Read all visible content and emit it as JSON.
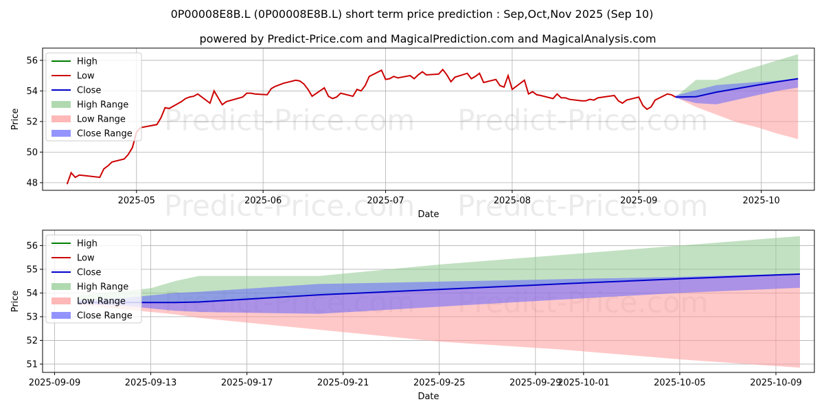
{
  "title": "0P00008E8B.L (0P00008E8B.L) short term price prediction : Sep,Oct,Nov 2025 (Sep 10)",
  "subtitle": "powered by Predict-Price.com and MagicalPrediction.com and MagicalAnalysis.com",
  "watermark": "Predict-Price.com",
  "colors": {
    "high": "#008000",
    "low": "#cc0000",
    "close": "#0000cc",
    "high_range": "#8fc98f",
    "low_range": "#ff9a9a",
    "close_range": "#6666ff"
  },
  "chart_data": [
    {
      "type": "line",
      "panel": "top",
      "xlabel": "Date",
      "ylabel": "Price",
      "xlim": [
        "2025-04-08",
        "2025-10-14"
      ],
      "ylim": [
        47.5,
        56.8
      ],
      "yticks": [
        48,
        50,
        52,
        54,
        56
      ],
      "ytick_labels": [
        "48",
        "50",
        "52",
        "54",
        "56"
      ],
      "xticks": [
        "2025-05-01",
        "2025-06-01",
        "2025-07-01",
        "2025-08-01",
        "2025-09-01",
        "2025-10-01"
      ],
      "xtick_labels": [
        "2025-05",
        "2025-06",
        "2025-07",
        "2025-08",
        "2025-09",
        "2025-10"
      ],
      "grid": true,
      "legend": {
        "placement": "top-left",
        "entries": [
          {
            "label": "High",
            "kind": "line",
            "color_key": "high"
          },
          {
            "label": "Low",
            "kind": "line",
            "color_key": "low"
          },
          {
            "label": "Close",
            "kind": "line",
            "color_key": "close"
          },
          {
            "label": "High Range",
            "kind": "patch",
            "color_key": "high_range"
          },
          {
            "label": "Low Range",
            "kind": "patch",
            "color_key": "low_range"
          },
          {
            "label": "Close Range",
            "kind": "patch",
            "color_key": "close_range"
          }
        ]
      },
      "history": {
        "x": [
          "2025-04-14",
          "2025-04-15",
          "2025-04-16",
          "2025-04-17",
          "2025-04-22",
          "2025-04-23",
          "2025-04-24",
          "2025-04-25",
          "2025-04-28",
          "2025-04-29",
          "2025-04-30",
          "2025-05-01",
          "2025-05-02",
          "2025-05-06",
          "2025-05-07",
          "2025-05-08",
          "2025-05-09",
          "2025-05-12",
          "2025-05-13",
          "2025-05-14",
          "2025-05-15",
          "2025-05-16",
          "2025-05-19",
          "2025-05-20",
          "2025-05-21",
          "2025-05-22",
          "2025-05-23",
          "2025-05-27",
          "2025-05-28",
          "2025-05-29",
          "2025-05-30",
          "2025-06-02",
          "2025-06-03",
          "2025-06-04",
          "2025-06-05",
          "2025-06-06",
          "2025-06-09",
          "2025-06-10",
          "2025-06-11",
          "2025-06-12",
          "2025-06-13",
          "2025-06-16",
          "2025-06-17",
          "2025-06-18",
          "2025-06-19",
          "2025-06-20",
          "2025-06-23",
          "2025-06-24",
          "2025-06-25",
          "2025-06-26",
          "2025-06-27",
          "2025-06-30",
          "2025-07-01",
          "2025-07-02",
          "2025-07-03",
          "2025-07-04",
          "2025-07-07",
          "2025-07-08",
          "2025-07-09",
          "2025-07-10",
          "2025-07-11",
          "2025-07-14",
          "2025-07-15",
          "2025-07-16",
          "2025-07-17",
          "2025-07-18",
          "2025-07-21",
          "2025-07-22",
          "2025-07-23",
          "2025-07-24",
          "2025-07-25",
          "2025-07-28",
          "2025-07-29",
          "2025-07-30",
          "2025-07-31",
          "2025-08-01",
          "2025-08-04",
          "2025-08-05",
          "2025-08-06",
          "2025-08-07",
          "2025-08-08",
          "2025-08-11",
          "2025-08-12",
          "2025-08-13",
          "2025-08-14",
          "2025-08-15",
          "2025-08-18",
          "2025-08-19",
          "2025-08-20",
          "2025-08-21",
          "2025-08-22",
          "2025-08-26",
          "2025-08-27",
          "2025-08-28",
          "2025-08-29",
          "2025-09-01",
          "2025-09-02",
          "2025-09-03",
          "2025-09-04",
          "2025-09-05",
          "2025-09-08",
          "2025-09-09",
          "2025-09-10"
        ],
        "low": [
          47.9,
          48.65,
          48.35,
          48.5,
          48.35,
          48.9,
          49.1,
          49.35,
          49.55,
          49.85,
          50.3,
          51.3,
          51.6,
          51.8,
          52.25,
          52.9,
          52.85,
          53.3,
          53.5,
          53.6,
          53.65,
          53.8,
          53.2,
          54.0,
          53.55,
          53.1,
          53.3,
          53.6,
          53.85,
          53.85,
          53.8,
          53.75,
          54.15,
          54.3,
          54.4,
          54.5,
          54.7,
          54.65,
          54.45,
          54.1,
          53.65,
          54.2,
          53.65,
          53.5,
          53.6,
          53.85,
          53.65,
          54.1,
          54.0,
          54.35,
          54.95,
          55.35,
          54.75,
          54.8,
          54.95,
          54.85,
          55.0,
          54.8,
          55.05,
          55.25,
          55.05,
          55.1,
          55.4,
          55.05,
          54.6,
          54.9,
          55.15,
          54.8,
          54.95,
          55.15,
          54.55,
          54.75,
          54.35,
          54.25,
          55.0,
          54.1,
          54.7,
          53.8,
          53.95,
          53.75,
          53.7,
          53.5,
          53.8,
          53.55,
          53.55,
          53.45,
          53.35,
          53.35,
          53.45,
          53.4,
          53.55,
          53.7,
          53.35,
          53.2,
          53.4,
          53.6,
          53.05,
          52.8,
          52.95,
          53.4,
          53.8,
          53.75,
          53.6
        ]
      },
      "forecast": {
        "x": [
          "2025-09-10",
          "2025-09-15",
          "2025-09-20",
          "2025-09-25",
          "2025-09-30",
          "2025-10-05",
          "2025-10-10"
        ],
        "close": [
          53.6,
          53.62,
          53.92,
          54.15,
          54.38,
          54.6,
          54.8
        ],
        "high_upper": [
          53.6,
          54.72,
          54.72,
          55.2,
          55.6,
          56.0,
          56.4
        ],
        "low_lower": [
          53.6,
          52.95,
          52.45,
          51.95,
          51.62,
          51.2,
          50.85
        ],
        "close_upper": [
          53.7,
          54.05,
          54.38,
          54.48,
          54.58,
          54.68,
          54.82
        ],
        "close_lower": [
          53.55,
          53.2,
          53.12,
          53.42,
          53.72,
          54.0,
          54.22
        ]
      }
    },
    {
      "type": "line",
      "panel": "bottom",
      "xlabel": "Date",
      "ylabel": "Price",
      "xlim": [
        "2025-09-08.5",
        "2025-10-10.6"
      ],
      "ylim": [
        50.65,
        56.65
      ],
      "yticks": [
        51,
        52,
        53,
        54,
        55,
        56
      ],
      "ytick_labels": [
        "51",
        "52",
        "53",
        "54",
        "55",
        "56"
      ],
      "xticks": [
        "2025-09-09",
        "2025-09-13",
        "2025-09-17",
        "2025-09-21",
        "2025-09-25",
        "2025-09-29",
        "2025-10-01",
        "2025-10-05",
        "2025-10-09"
      ],
      "xtick_labels": [
        "2025-09-09",
        "2025-09-13",
        "2025-09-17",
        "2025-09-21",
        "2025-09-25",
        "2025-09-29",
        "2025-10-01",
        "2025-10-05",
        "2025-10-09"
      ],
      "grid": true,
      "legend": {
        "placement": "top-left",
        "entries": [
          {
            "label": "High",
            "kind": "line",
            "color_key": "high"
          },
          {
            "label": "Low",
            "kind": "line",
            "color_key": "low"
          },
          {
            "label": "Close",
            "kind": "line",
            "color_key": "close"
          },
          {
            "label": "High Range",
            "kind": "patch",
            "color_key": "high_range"
          },
          {
            "label": "Low Range",
            "kind": "patch",
            "color_key": "low_range"
          },
          {
            "label": "Close Range",
            "kind": "patch",
            "color_key": "close_range"
          }
        ]
      },
      "forecast": {
        "x": [
          "2025-09-10",
          "2025-09-11",
          "2025-09-12",
          "2025-09-13",
          "2025-09-14",
          "2025-09-15",
          "2025-09-20",
          "2025-09-25",
          "2025-09-30",
          "2025-10-05",
          "2025-10-10"
        ],
        "close": [
          53.6,
          53.6,
          53.6,
          53.6,
          53.6,
          53.62,
          53.92,
          54.15,
          54.38,
          54.6,
          54.8
        ],
        "high_upper": [
          53.9,
          54.0,
          54.1,
          54.2,
          54.5,
          54.72,
          54.72,
          55.2,
          55.6,
          56.0,
          56.4
        ],
        "low_lower": [
          53.5,
          53.4,
          53.3,
          53.2,
          53.1,
          52.95,
          52.45,
          51.95,
          51.62,
          51.2,
          50.85
        ],
        "close_upper": [
          53.7,
          53.75,
          53.8,
          53.9,
          54.0,
          54.05,
          54.38,
          54.48,
          54.58,
          54.68,
          54.82
        ],
        "close_lower": [
          53.55,
          53.5,
          53.45,
          53.35,
          53.25,
          53.2,
          53.12,
          53.42,
          53.72,
          54.0,
          54.22
        ]
      }
    }
  ]
}
